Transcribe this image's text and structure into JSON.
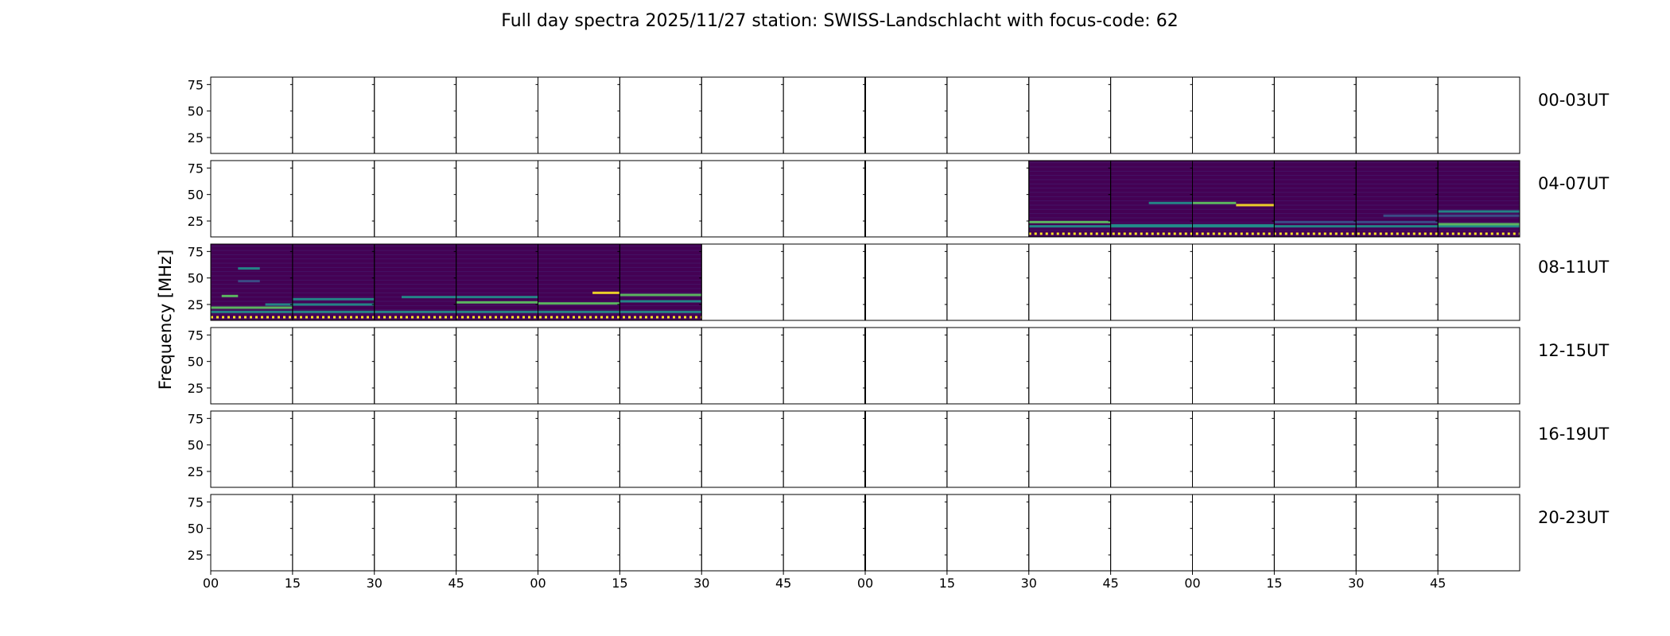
{
  "chart_data": {
    "type": "heatmap",
    "title": "Full day spectra 2025/11/27 station: SWISS-Landschlacht with focus-code: 62",
    "ylabel": "Frequency [MHz]",
    "xlabel": "",
    "ylim": [
      10,
      82
    ],
    "yticks": [
      25,
      50,
      75
    ],
    "x_tick_labels": [
      "00",
      "15",
      "30",
      "45",
      "00",
      "15",
      "30",
      "45",
      "00",
      "15",
      "30",
      "45",
      "00",
      "15",
      "30",
      "45"
    ],
    "minutes_per_column": 15,
    "columns_per_row": 16,
    "grid": false,
    "colormap": "viridis",
    "colors": {
      "background": "#440154",
      "low": "#3b528b",
      "mid": "#21918c",
      "high": "#5ec962",
      "peak": "#fde725"
    },
    "rows": [
      {
        "label": "00-03UT",
        "data_start_min": null,
        "data_end_min": null,
        "features": []
      },
      {
        "label": "04-07UT",
        "data_start_min": 150,
        "data_end_min": 240,
        "features": [
          {
            "start_min": 150,
            "end_min": 240,
            "freq_mhz": 13,
            "level": "peak",
            "kind": "dotted"
          },
          {
            "start_min": 150,
            "end_min": 240,
            "freq_mhz": 20,
            "level": "mid"
          },
          {
            "start_min": 150,
            "end_min": 165,
            "freq_mhz": 24,
            "level": "high"
          },
          {
            "start_min": 165,
            "end_min": 195,
            "freq_mhz": 21,
            "level": "mid"
          },
          {
            "start_min": 172,
            "end_min": 180,
            "freq_mhz": 42,
            "level": "mid"
          },
          {
            "start_min": 180,
            "end_min": 188,
            "freq_mhz": 42,
            "level": "high"
          },
          {
            "start_min": 188,
            "end_min": 195,
            "freq_mhz": 40,
            "level": "peak"
          },
          {
            "start_min": 195,
            "end_min": 225,
            "freq_mhz": 24,
            "level": "low"
          },
          {
            "start_min": 215,
            "end_min": 240,
            "freq_mhz": 30,
            "level": "low"
          },
          {
            "start_min": 225,
            "end_min": 240,
            "freq_mhz": 22,
            "level": "high"
          },
          {
            "start_min": 225,
            "end_min": 240,
            "freq_mhz": 34,
            "level": "mid"
          }
        ]
      },
      {
        "label": "08-11UT",
        "data_start_min": 0,
        "data_end_min": 90,
        "features": [
          {
            "start_min": 0,
            "end_min": 90,
            "freq_mhz": 13,
            "level": "peak",
            "kind": "dotted"
          },
          {
            "start_min": 0,
            "end_min": 15,
            "freq_mhz": 22,
            "level": "high"
          },
          {
            "start_min": 0,
            "end_min": 90,
            "freq_mhz": 18,
            "level": "mid"
          },
          {
            "start_min": 5,
            "end_min": 9,
            "freq_mhz": 59,
            "level": "mid"
          },
          {
            "start_min": 5,
            "end_min": 9,
            "freq_mhz": 47,
            "level": "low"
          },
          {
            "start_min": 2,
            "end_min": 5,
            "freq_mhz": 33,
            "level": "high"
          },
          {
            "start_min": 10,
            "end_min": 30,
            "freq_mhz": 25,
            "level": "mid"
          },
          {
            "start_min": 15,
            "end_min": 30,
            "freq_mhz": 30,
            "level": "mid"
          },
          {
            "start_min": 35,
            "end_min": 60,
            "freq_mhz": 32,
            "level": "mid"
          },
          {
            "start_min": 45,
            "end_min": 60,
            "freq_mhz": 27,
            "level": "high"
          },
          {
            "start_min": 60,
            "end_min": 75,
            "freq_mhz": 26,
            "level": "high"
          },
          {
            "start_min": 70,
            "end_min": 75,
            "freq_mhz": 36,
            "level": "peak"
          },
          {
            "start_min": 75,
            "end_min": 90,
            "freq_mhz": 34,
            "level": "high"
          },
          {
            "start_min": 75,
            "end_min": 90,
            "freq_mhz": 28,
            "level": "mid"
          }
        ]
      },
      {
        "label": "12-15UT",
        "data_start_min": null,
        "data_end_min": null,
        "features": []
      },
      {
        "label": "16-19UT",
        "data_start_min": null,
        "data_end_min": null,
        "features": []
      },
      {
        "label": "20-23UT",
        "data_start_min": null,
        "data_end_min": null,
        "features": []
      }
    ]
  }
}
